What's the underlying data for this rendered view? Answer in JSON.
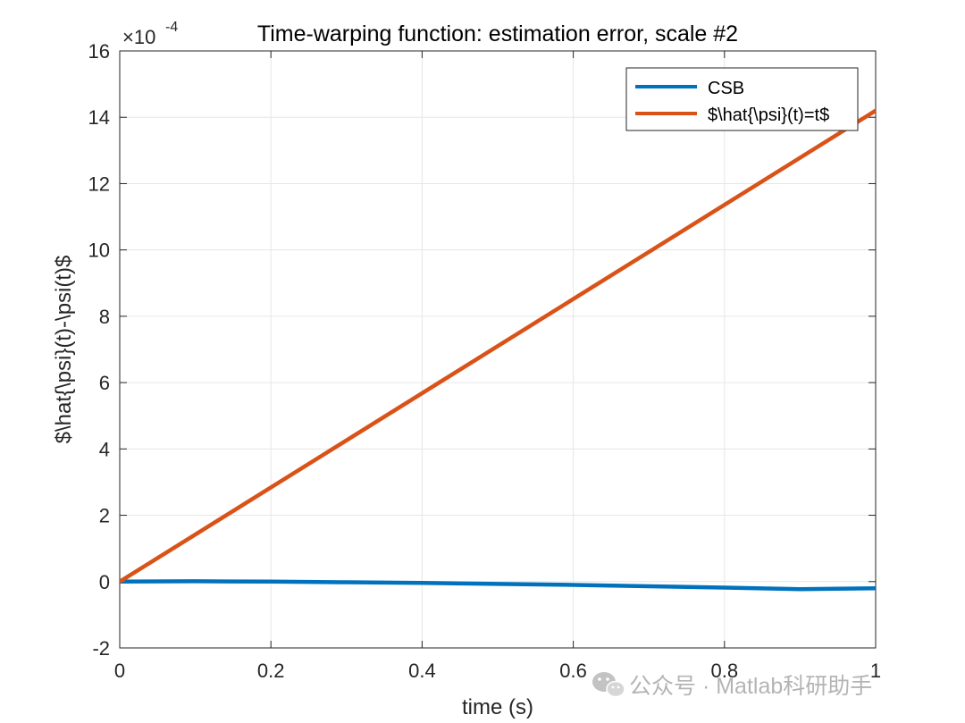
{
  "chart_data": {
    "type": "line",
    "title": "Time-warping function: estimation error, scale #2",
    "xlabel": "time (s)",
    "ylabel": "$\\hat{\\psi}(t)-\\psi(t)$",
    "y_exponent_label": "×10",
    "y_exponent_power": "-4",
    "xlim": [
      0,
      1
    ],
    "ylim": [
      -2,
      16
    ],
    "x_ticks": [
      0,
      0.2,
      0.4,
      0.6,
      0.8,
      1
    ],
    "x_tick_labels": [
      "0",
      "0.2",
      "0.4",
      "0.6",
      "0.8",
      "1"
    ],
    "y_ticks": [
      -2,
      0,
      2,
      4,
      6,
      8,
      10,
      12,
      14,
      16
    ],
    "y_tick_labels": [
      "-2",
      "0",
      "2",
      "4",
      "6",
      "8",
      "10",
      "12",
      "14",
      "16"
    ],
    "grid": true,
    "legend_position": "top-right",
    "series": [
      {
        "name": "CSB",
        "color": "#0072BD",
        "x": [
          0,
          0.1,
          0.2,
          0.3,
          0.4,
          0.5,
          0.6,
          0.7,
          0.8,
          0.9,
          1.0
        ],
        "y": [
          0,
          0.01,
          0.0,
          -0.02,
          -0.04,
          -0.07,
          -0.1,
          -0.14,
          -0.18,
          -0.23,
          -0.2
        ]
      },
      {
        "name": "$\\hat{\\psi}(t)=t$",
        "color": "#D95319",
        "x": [
          0,
          1
        ],
        "y": [
          0,
          14.2
        ]
      }
    ]
  },
  "watermark": {
    "text": "公众号 · Matlab科研助手",
    "icon": "wechat-icon"
  }
}
